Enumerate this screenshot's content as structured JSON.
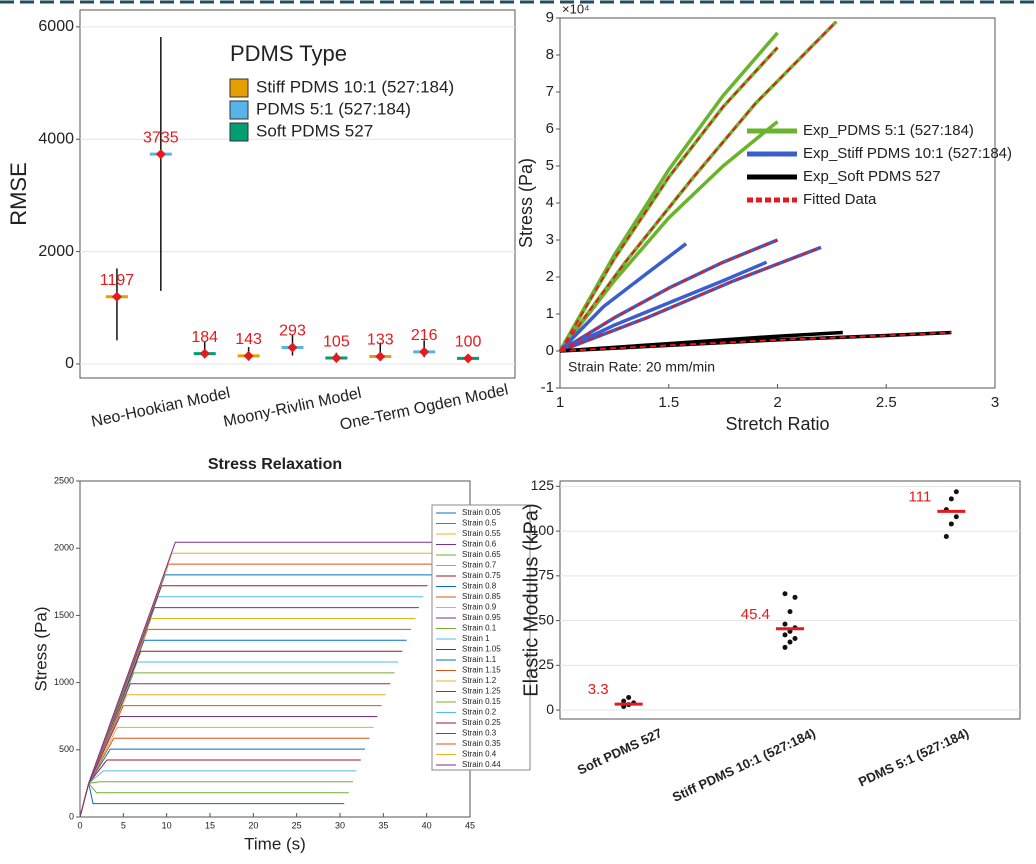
{
  "chart_data": [
    {
      "type": "dot",
      "ylabel": "RMSE",
      "categories": [
        null,
        "Neo-Hookian Model",
        null,
        null,
        "Moony-Rivlin Model",
        null,
        null,
        "One-Term Ogden Model",
        null
      ],
      "ylim": [
        -250,
        6300
      ],
      "yticks": [
        0,
        2000,
        4000,
        6000
      ],
      "grid": true,
      "legend_title": "PDMS Type",
      "series": [
        {
          "name": "Stiff PDMS 10:1 (527:184)",
          "color": "#e69f00",
          "values": [
            1197,
            null,
            null,
            143,
            null,
            null,
            133,
            null,
            null
          ],
          "low": [
            420,
            null,
            null,
            60,
            null,
            null,
            60,
            null,
            null
          ],
          "high": [
            1700,
            null,
            null,
            300,
            null,
            null,
            380,
            null,
            null
          ]
        },
        {
          "name": "PDMS 5:1 (527:184)",
          "color": "#56b4e9",
          "values": [
            null,
            3735,
            null,
            null,
            293,
            null,
            null,
            216,
            null
          ],
          "low": [
            null,
            1300,
            null,
            null,
            150,
            null,
            null,
            120,
            null
          ],
          "high": [
            null,
            5820,
            null,
            null,
            520,
            null,
            null,
            420,
            null
          ]
        },
        {
          "name": "Soft PDMS 527",
          "color": "#009e73",
          "values": [
            null,
            null,
            184,
            null,
            null,
            105,
            null,
            null,
            100
          ],
          "low": [
            null,
            null,
            100,
            null,
            null,
            50,
            null,
            null,
            60
          ],
          "high": [
            null,
            null,
            400,
            null,
            null,
            200,
            null,
            null,
            150
          ]
        }
      ]
    },
    {
      "type": "line",
      "xlabel": "Stretch Ratio",
      "ylabel": "Stress (Pa)",
      "y_scale_label": "×10⁴",
      "annotation": "Strain Rate: 20 mm/min",
      "xlim": [
        1,
        3
      ],
      "xticks": [
        1,
        1.5,
        2,
        2.5,
        3
      ],
      "ylim": [
        -1,
        9
      ],
      "yticks": [
        -1,
        0,
        1,
        2,
        3,
        4,
        5,
        6,
        7,
        8,
        9
      ],
      "grid": false,
      "legend": "center right",
      "series": [
        {
          "name": "Exp_PDMS 5:1 (527:184)",
          "color": "#6ab42d",
          "dashed": false,
          "x": [
            1,
            1.25,
            1.5,
            1.75,
            2,
            null,
            1,
            1.25,
            1.5,
            1.75,
            2,
            null,
            1,
            1.3,
            1.6,
            1.9,
            2.27,
            null,
            1,
            1.25,
            1.5,
            1.75,
            2
          ],
          "values": [
            0,
            2.6,
            4.9,
            6.9,
            8.6,
            null,
            0,
            2.5,
            4.7,
            6.6,
            8.2,
            null,
            0,
            2.4,
            4.6,
            6.7,
            8.9,
            null,
            0,
            1.9,
            3.6,
            5.0,
            6.2
          ]
        },
        {
          "name": "Exp_Stiff PDMS 10:1 (527:184)",
          "color": "#3a5fcd",
          "dashed": false,
          "x": [
            1,
            1.2,
            1.4,
            1.58,
            null,
            1,
            1.25,
            1.5,
            1.75,
            2,
            null,
            1,
            1.25,
            1.5,
            1.75,
            1.95,
            null,
            1,
            1.4,
            1.8,
            2.2
          ],
          "values": [
            0,
            1.2,
            2.1,
            2.9,
            null,
            0,
            0.9,
            1.7,
            2.4,
            3.0,
            null,
            0,
            0.7,
            1.3,
            1.9,
            2.4,
            null,
            0,
            0.9,
            1.9,
            2.8
          ]
        },
        {
          "name": "Exp_Soft PDMS 527",
          "color": "#000000",
          "dashed": false,
          "x": [
            1,
            1.5,
            2,
            2.5,
            2.8,
            null,
            1,
            1.5,
            2,
            2.3
          ],
          "values": [
            0,
            0.15,
            0.3,
            0.42,
            0.5,
            null,
            0,
            0.2,
            0.4,
            0.5
          ]
        },
        {
          "name": "Fitted Data",
          "color": "#e41a1c",
          "dashed": true,
          "x": [
            1,
            1.25,
            1.5,
            1.75,
            2,
            null,
            1,
            1.3,
            1.6,
            1.9,
            2.27,
            null,
            1,
            1.25,
            1.5,
            1.75,
            2,
            null,
            1,
            1.4,
            1.8,
            2.2,
            null,
            1,
            1.5,
            2,
            2.5,
            2.8
          ],
          "values": [
            0,
            2.5,
            4.7,
            6.6,
            8.2,
            null,
            0,
            2.4,
            4.6,
            6.7,
            8.9,
            null,
            0,
            0.9,
            1.7,
            2.4,
            3.0,
            null,
            0,
            0.9,
            1.9,
            2.8,
            null,
            0,
            0.15,
            0.3,
            0.42,
            0.5
          ]
        }
      ]
    },
    {
      "type": "line",
      "title": "Stress Relaxation",
      "xlabel": "Time (s)",
      "ylabel": "Stress (Pa)",
      "xlim": [
        0,
        45
      ],
      "xticks": [
        0,
        5,
        10,
        15,
        20,
        25,
        30,
        35,
        40,
        45
      ],
      "ylim": [
        0,
        2500
      ],
      "yticks": [
        0,
        500,
        1000,
        1500,
        2000,
        2500
      ],
      "grid": false,
      "legend": "outside right",
      "series": [
        {
          "name": "Strain 0.05",
          "color": "#0072bd",
          "x": [
            0,
            1,
            1.5,
            30.5
          ],
          "values": [
            0,
            250,
            100,
            100
          ]
        },
        {
          "name": "Strain 0.5",
          "color": "#d95319",
          "x": [
            0,
            1,
            5.0,
            34.8
          ],
          "values": [
            0,
            250,
            829,
            829
          ]
        },
        {
          "name": "Strain 0.55",
          "color": "#edb120",
          "x": [
            0,
            1,
            5.4,
            35.3
          ],
          "values": [
            0,
            250,
            910,
            910
          ]
        },
        {
          "name": "Strain 0.6",
          "color": "#7e2f8e",
          "x": [
            0,
            1,
            5.8,
            35.8
          ],
          "values": [
            0,
            250,
            991,
            991
          ]
        },
        {
          "name": "Strain 0.65",
          "color": "#77ac30",
          "x": [
            0,
            1,
            6.2,
            36.3
          ],
          "values": [
            0,
            250,
            1072,
            1072
          ]
        },
        {
          "name": "Strain 0.7",
          "color": "#4dbeee",
          "x": [
            0,
            1,
            6.6,
            36.7
          ],
          "values": [
            0,
            250,
            1153,
            1153
          ]
        },
        {
          "name": "Strain 0.75",
          "color": "#a2142f",
          "x": [
            0,
            1,
            7.0,
            37.2
          ],
          "values": [
            0,
            250,
            1234,
            1234
          ]
        },
        {
          "name": "Strain 0.8",
          "color": "#0072bd",
          "x": [
            0,
            1,
            7.4,
            37.7
          ],
          "values": [
            0,
            250,
            1315,
            1315
          ]
        },
        {
          "name": "Strain 0.85",
          "color": "#d95319",
          "x": [
            0,
            1,
            7.8,
            38.2
          ],
          "values": [
            0,
            250,
            1396,
            1396
          ]
        },
        {
          "name": "Strain 0.9",
          "color": "#edb120",
          "x": [
            0,
            1,
            8.2,
            38.7
          ],
          "values": [
            0,
            250,
            1477,
            1477
          ]
        },
        {
          "name": "Strain 0.95",
          "color": "#7e2f8e",
          "x": [
            0,
            1,
            8.6,
            39.1
          ],
          "values": [
            0,
            250,
            1558,
            1558
          ]
        },
        {
          "name": "Strain 0.1",
          "color": "#77ac30",
          "x": [
            0,
            1,
            1.9,
            31
          ],
          "values": [
            0,
            250,
            181,
            181
          ]
        },
        {
          "name": "Strain 1",
          "color": "#4dbeee",
          "x": [
            0,
            1,
            9.0,
            39.6
          ],
          "values": [
            0,
            250,
            1639,
            1639
          ]
        },
        {
          "name": "Strain 1.05",
          "color": "#a2142f",
          "x": [
            0,
            1,
            9.4,
            40.1
          ],
          "values": [
            0,
            250,
            1720,
            1720
          ]
        },
        {
          "name": "Strain 1.1",
          "color": "#0072bd",
          "x": [
            0,
            1,
            9.8,
            40.6
          ],
          "values": [
            0,
            250,
            1801,
            1801
          ]
        },
        {
          "name": "Strain 1.15",
          "color": "#d95319",
          "x": [
            0,
            1,
            10.2,
            41.1
          ],
          "values": [
            0,
            250,
            1882,
            1882
          ]
        },
        {
          "name": "Strain 1.2",
          "color": "#edb120",
          "x": [
            0,
            1,
            10.6,
            41.5
          ],
          "values": [
            0,
            250,
            1963,
            1963
          ]
        },
        {
          "name": "Strain 1.25",
          "color": "#7e2f8e",
          "x": [
            0,
            1,
            11.0,
            42
          ],
          "values": [
            0,
            250,
            2044,
            2044
          ]
        },
        {
          "name": "Strain 0.15",
          "color": "#77ac30",
          "x": [
            0,
            1,
            2.3,
            31.5
          ],
          "values": [
            0,
            250,
            262,
            262
          ]
        },
        {
          "name": "Strain 0.2",
          "color": "#4dbeee",
          "x": [
            0,
            1,
            2.7,
            31.9
          ],
          "values": [
            0,
            250,
            343,
            343
          ]
        },
        {
          "name": "Strain 0.25",
          "color": "#a2142f",
          "x": [
            0,
            1,
            3.1,
            32.4
          ],
          "values": [
            0,
            250,
            424,
            424
          ]
        },
        {
          "name": "Strain 0.3",
          "color": "#0072bd",
          "x": [
            0,
            1,
            3.5,
            32.9
          ],
          "values": [
            0,
            250,
            505,
            505
          ]
        },
        {
          "name": "Strain 0.35",
          "color": "#d95319",
          "x": [
            0,
            1,
            3.9,
            33.4
          ],
          "values": [
            0,
            250,
            586,
            586
          ]
        },
        {
          "name": "Strain 0.4",
          "color": "#edb120",
          "x": [
            0,
            1,
            4.3,
            33.9
          ],
          "values": [
            0,
            250,
            667,
            667
          ]
        },
        {
          "name": "Strain 0.44",
          "color": "#7e2f8e",
          "x": [
            0,
            1,
            4.6,
            34.3
          ],
          "values": [
            0,
            250,
            748,
            748
          ]
        }
      ]
    },
    {
      "type": "strip",
      "ylabel": "Elastic Modulus (kPa)",
      "categories": [
        "Soft PDMS 527",
        "Stiff PDMS 10:1 (527:184)",
        "PDMS 5:1 (527:184)"
      ],
      "values": [
        3.3,
        45.4,
        111
      ],
      "color": "#e41a1c",
      "points": [
        [
          2,
          3,
          4,
          5,
          7
        ],
        [
          35,
          38,
          40,
          42,
          44,
          46,
          48,
          55,
          63,
          65
        ],
        [
          97,
          104,
          108,
          112,
          118,
          122
        ]
      ],
      "ylim": [
        -5,
        128
      ],
      "yticks": [
        0,
        25,
        50,
        75,
        100,
        125
      ],
      "grid": true
    }
  ]
}
